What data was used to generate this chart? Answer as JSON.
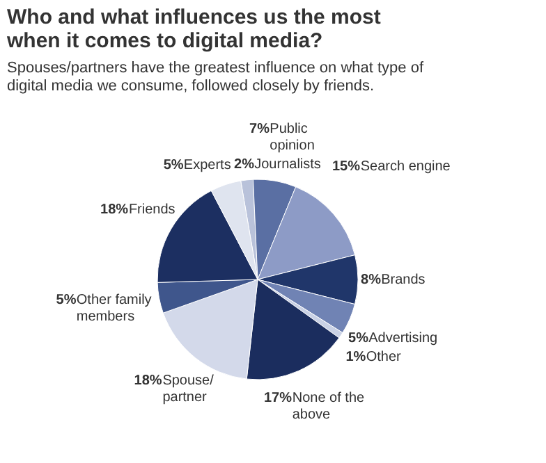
{
  "chart_data": {
    "type": "pie",
    "title": "Who and what influences us the most when it comes to digital media?",
    "subtitle": "Spouses/partners have the greatest influence on what type of digital media we consume, followed closely by friends.",
    "categories": [
      "Journalists",
      "Public opinion",
      "Search engine",
      "Brands",
      "Advertising",
      "Other",
      "None of the above",
      "Spouse/ partner",
      "Other family members",
      "Friends",
      "Experts"
    ],
    "values": [
      2,
      7,
      15,
      8,
      5,
      1,
      17,
      18,
      5,
      18,
      5
    ],
    "colors": [
      "#b9c2da",
      "#5a6fa3",
      "#8d9bc6",
      "#20366a",
      "#7083b4",
      "#c9d1e5",
      "#1b2d5e",
      "#d3d9ea",
      "#3f568c",
      "#1c2f61",
      "#dfe4ef"
    ],
    "value_labels": [
      "2%",
      "7%",
      "15%",
      "8%",
      "5%",
      "1%",
      "17%",
      "18%",
      "5%",
      "18%",
      "5%"
    ],
    "legend": false
  }
}
